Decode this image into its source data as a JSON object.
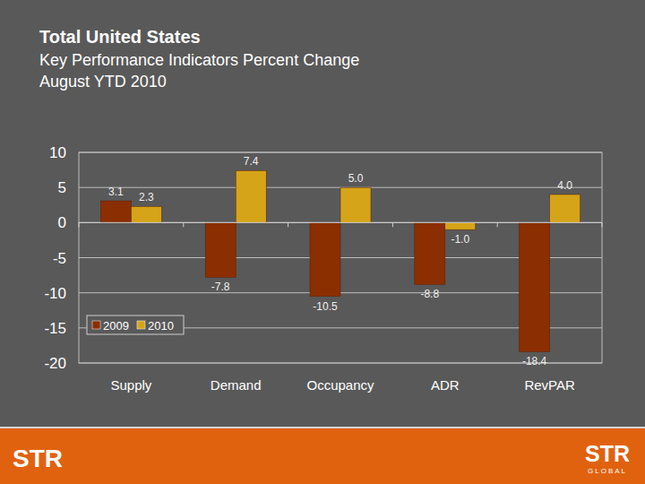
{
  "chart_data": {
    "type": "bar",
    "title": "Total United States",
    "subtitle": "Key Performance Indicators Percent Change",
    "period": "August YTD 2010",
    "categories": [
      "Supply",
      "Demand",
      "Occupancy",
      "ADR",
      "RevPAR"
    ],
    "series": [
      {
        "name": "2009",
        "color": "#8b2e00",
        "values": [
          3.1,
          -7.8,
          -10.5,
          -8.8,
          -18.4
        ]
      },
      {
        "name": "2010",
        "color": "#d6a418",
        "values": [
          2.3,
          7.4,
          5.0,
          -1.0,
          4.0
        ],
        "value_labels": [
          "2.3",
          "7.4",
          "5.0",
          "-1.0",
          "4.0"
        ]
      }
    ],
    "ylim": [
      -20,
      10
    ],
    "yticks": [
      -20,
      -15,
      -10,
      -5,
      0,
      5,
      10
    ],
    "grid": true,
    "legend": "lower left",
    "data_labels": true
  },
  "footer": {
    "left_logo": "STR",
    "right_logo": "STR",
    "right_logo_sub": "GLOBAL"
  }
}
